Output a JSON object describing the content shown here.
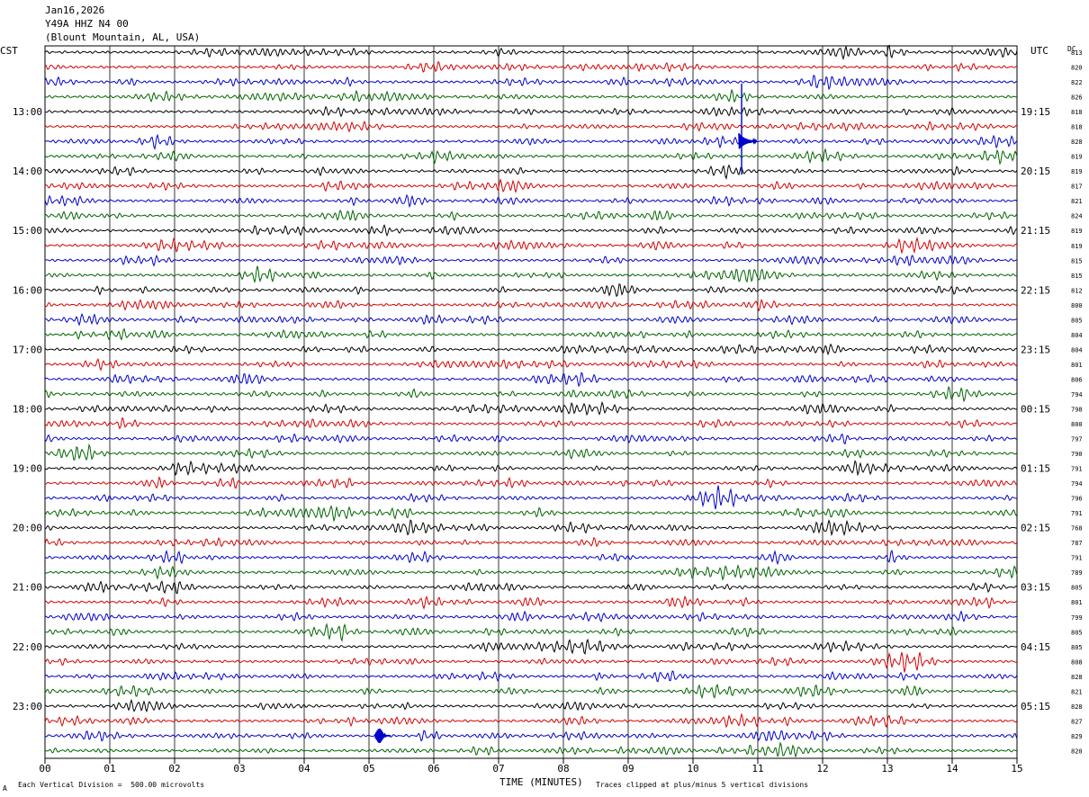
{
  "header": {
    "date": "Jan16,2026",
    "station": "Y49A HHZ N4 00",
    "location": "(Blount Mountain, AL, USA)"
  },
  "left_timezone": "CST",
  "right_timezone": "UTC",
  "dc_label": "DC",
  "footer": {
    "scale_note": "Each Vertical Division =  500.00 microvolts",
    "xlabel": "TIME (MINUTES)",
    "clip_note": "Traces clipped at plus/minus 5 vertical divisions",
    "corner_mark": "A"
  },
  "colors": {
    "cycle": [
      "#000000",
      "#d40000",
      "#0000cc",
      "#006400"
    ]
  },
  "chart_data": {
    "type": "line",
    "title": "Y49A HHZ N4 00",
    "xlabel": "TIME (MINUTES)",
    "xlim": [
      0,
      15
    ],
    "x_ticks": [
      "00",
      "01",
      "02",
      "03",
      "04",
      "05",
      "06",
      "07",
      "08",
      "09",
      "10",
      "11",
      "12",
      "13",
      "14",
      "15"
    ],
    "grid": true,
    "rows_per_hour": 4,
    "left_hour_labels": [
      "13:00",
      "14:00",
      "15:00",
      "16:00",
      "17:00",
      "18:00",
      "19:00",
      "20:00",
      "21:00",
      "22:00",
      "23:00"
    ],
    "right_hour_labels": [
      "19:15",
      "20:15",
      "21:15",
      "22:15",
      "23:15",
      "00:15",
      "01:15",
      "02:15",
      "03:15",
      "04:15",
      "05:15"
    ],
    "dc_offsets": [
      813,
      820,
      822,
      826,
      818,
      818,
      828,
      819,
      819,
      817,
      821,
      824,
      819,
      819,
      815,
      815,
      812,
      800,
      805,
      804,
      804,
      801,
      806,
      794,
      798,
      800,
      797,
      790,
      791,
      794,
      796,
      791,
      768,
      787,
      791,
      789,
      805,
      801,
      799,
      805,
      805,
      808,
      828,
      821,
      828,
      827,
      829,
      820
    ],
    "events": [
      {
        "row": 6,
        "minute": 10.75,
        "amplitude": "large"
      },
      {
        "row": 46,
        "minute": 5.15,
        "amplitude": "medium"
      }
    ]
  }
}
